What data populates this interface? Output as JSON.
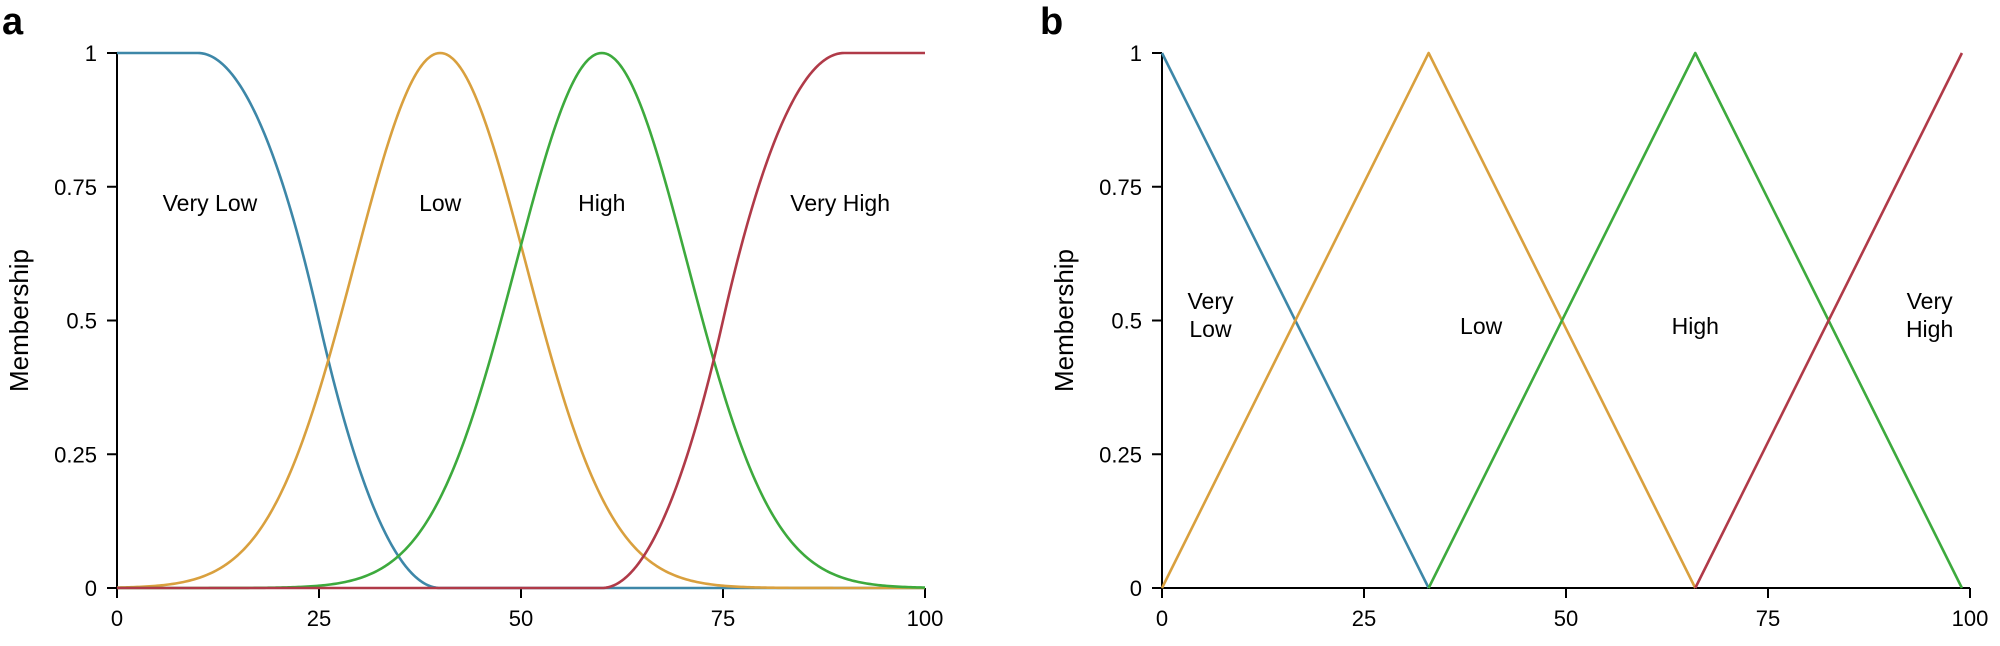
{
  "chart_data": [
    {
      "panel": "a",
      "type": "line",
      "ylabel": "Membership",
      "xlabel": "",
      "xlim": [
        0,
        100
      ],
      "ylim": [
        0,
        1
      ],
      "xticks": [
        "0",
        "25",
        "50",
        "75",
        "100"
      ],
      "yticks": [
        "0",
        "0.25",
        "0.5",
        "0.75",
        "1"
      ],
      "series": [
        {
          "name": "Very Low",
          "label_lines": [
            "Very Low"
          ],
          "label_x": 11.5,
          "label_y": 0.72,
          "color": "#3d87a8",
          "shape": "zshape",
          "params": [
            10,
            40
          ]
        },
        {
          "name": "Low",
          "label_lines": [
            "Low"
          ],
          "label_x": 40,
          "label_y": 0.72,
          "color": "#d9a03e",
          "shape": "gauss",
          "params": [
            40,
            10.6
          ]
        },
        {
          "name": "High",
          "label_lines": [
            "High"
          ],
          "label_x": 60,
          "label_y": 0.72,
          "color": "#3daa3d",
          "shape": "gauss",
          "params": [
            60,
            10.6
          ]
        },
        {
          "name": "Very High",
          "label_lines": [
            "Very High"
          ],
          "label_x": 89.5,
          "label_y": 0.72,
          "color": "#b03a48",
          "shape": "sshape",
          "params": [
            60,
            90
          ]
        }
      ]
    },
    {
      "panel": "b",
      "type": "line",
      "ylabel": "Membership",
      "xlabel": "",
      "xlim": [
        0,
        100
      ],
      "ylim": [
        0,
        1
      ],
      "xticks": [
        "0",
        "25",
        "50",
        "75",
        "100"
      ],
      "yticks": [
        "0",
        "0.25",
        "0.5",
        "0.75",
        "1"
      ],
      "series": [
        {
          "name": "Very Low",
          "label_lines": [
            "Very",
            "Low"
          ],
          "label_x": 6,
          "label_y": 0.51,
          "color": "#3d87a8",
          "shape": "polyline",
          "points": [
            [
              0,
              1
            ],
            [
              33,
              0
            ]
          ]
        },
        {
          "name": "Low",
          "label_lines": [
            "Low"
          ],
          "label_x": 39.5,
          "label_y": 0.49,
          "color": "#d9a03e",
          "shape": "polyline",
          "points": [
            [
              0,
              0
            ],
            [
              33,
              1
            ],
            [
              66,
              0
            ]
          ]
        },
        {
          "name": "High",
          "label_lines": [
            "High"
          ],
          "label_x": 66,
          "label_y": 0.49,
          "color": "#3daa3d",
          "shape": "polyline",
          "points": [
            [
              33,
              0
            ],
            [
              66,
              1
            ],
            [
              99,
              0
            ]
          ]
        },
        {
          "name": "Very High",
          "label_lines": [
            "Very",
            "High"
          ],
          "label_x": 95,
          "label_y": 0.51,
          "color": "#b03a48",
          "shape": "polyline",
          "points": [
            [
              66,
              0
            ],
            [
              99,
              1
            ]
          ]
        }
      ]
    }
  ]
}
